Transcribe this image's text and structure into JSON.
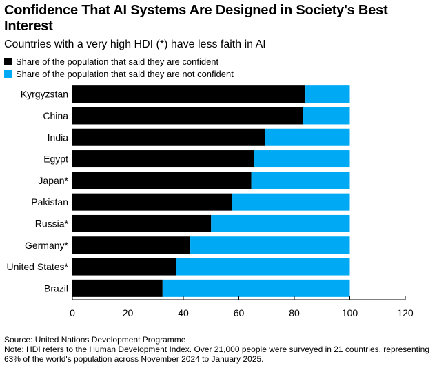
{
  "header": {
    "title": "Confidence That AI Systems Are Designed in Society's Best Interest",
    "subtitle": "Countries with a very high HDI (*) have less faith in AI"
  },
  "legend": [
    {
      "label": "Share of the population that said they are confident",
      "color": "#000000"
    },
    {
      "label": "Share of the population that said they are not confident",
      "color": "#00A9F4"
    }
  ],
  "footer": {
    "source": "Source: United Nations Development Programme",
    "note": "Note: HDI refers to the Human Development Index. Over 21,000 people were surveyed in 21 countries, representing 63% of the world's population across November 2024 to January 2025."
  },
  "chart_data": {
    "type": "bar",
    "orientation": "horizontal",
    "stacked": true,
    "title": "Confidence That AI Systems Are Designed in Society's Best Interest",
    "subtitle": "Countries with a very high HDI (*) have less faith in AI",
    "categories": [
      "Kyrgyzstan",
      "China",
      "India",
      "Egypt",
      "Japan*",
      "Pakistan",
      "Russia*",
      "Germany*",
      "United States*",
      "Brazil"
    ],
    "series": [
      {
        "name": "Share of the population that said they are confident",
        "color": "#000000",
        "values": [
          84,
          83,
          69.5,
          65.5,
          64.5,
          57.5,
          50,
          42.5,
          37.5,
          32.5
        ]
      },
      {
        "name": "Share of the population that said they are not confident",
        "color": "#00A9F4",
        "values": [
          16,
          17,
          30.5,
          34.5,
          35.5,
          42.5,
          50,
          57.5,
          62.5,
          67.5
        ]
      }
    ],
    "xlim": [
      0,
      120
    ],
    "xticks": [
      0,
      20,
      40,
      60,
      80,
      100,
      120
    ],
    "xlabel": "",
    "ylabel": "",
    "grid": false,
    "legend_position": "top-left"
  }
}
